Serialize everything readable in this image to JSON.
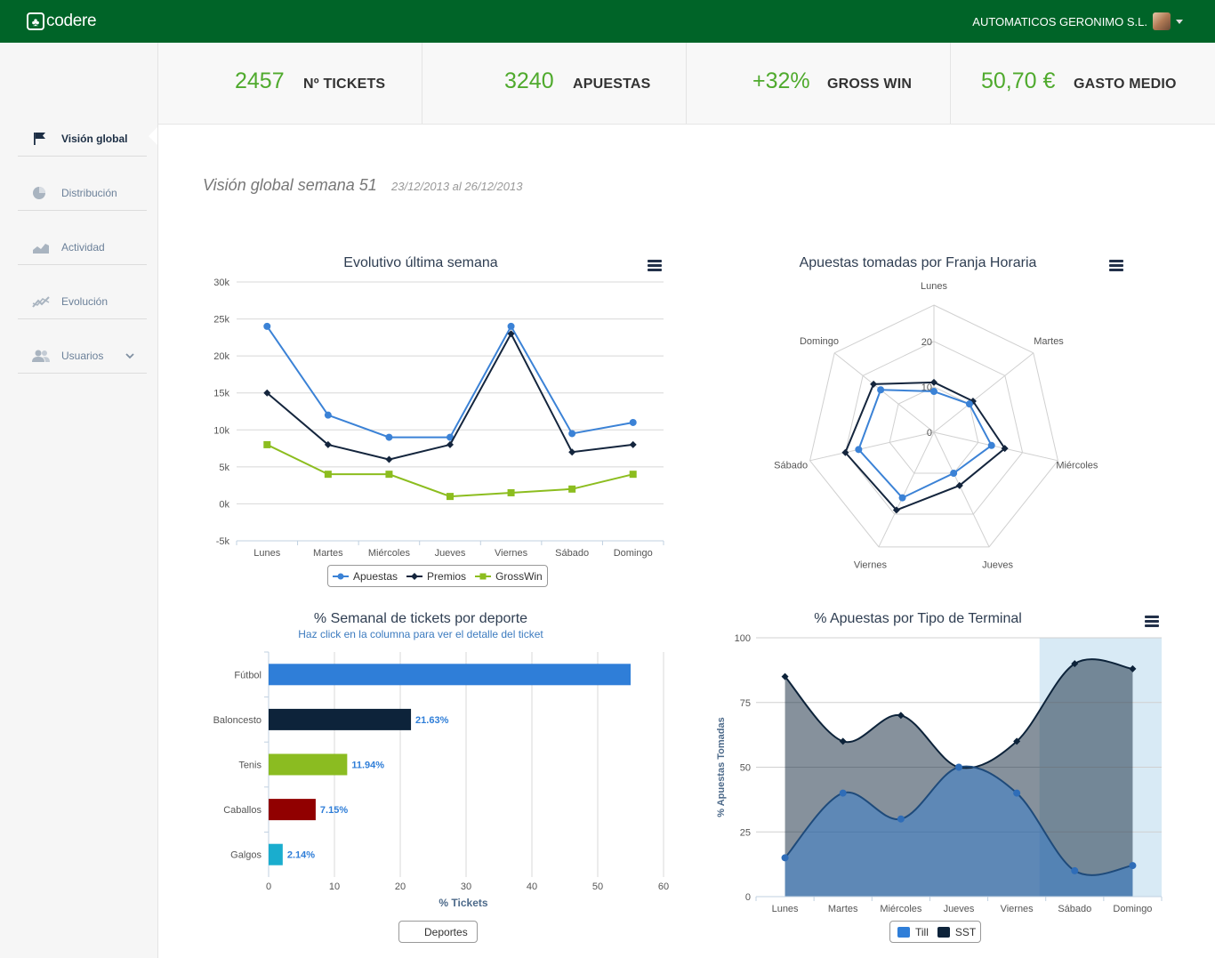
{
  "header": {
    "logo_text": "codere",
    "user_name": "AUTOMATICOS GERONIMO S.L."
  },
  "sidebar": {
    "items": [
      {
        "label": "Visión global",
        "icon": "flag-icon",
        "active": true
      },
      {
        "label": "Distribución",
        "icon": "pie-icon",
        "active": false
      },
      {
        "label": "Actividad",
        "icon": "area-chart-icon",
        "active": false
      },
      {
        "label": "Evolución",
        "icon": "line-chart-icon",
        "active": false
      },
      {
        "label": "Usuarios",
        "icon": "users-icon",
        "active": false
      }
    ]
  },
  "stats": [
    {
      "value": "2457",
      "label": "Nº TICKETS"
    },
    {
      "value": "3240",
      "label": "APUESTAS"
    },
    {
      "value": "+32%",
      "label": "GROSS WIN"
    },
    {
      "value": "50,70 €",
      "label": "GASTO MEDIO"
    }
  ],
  "page": {
    "title": "Visión global semana 51",
    "date_range": "23/12/2013 al 26/12/2013"
  },
  "colors": {
    "green": "#4faa2d",
    "blue": "#3b82d6",
    "navy": "#14253d",
    "lime": "#8cbd1f",
    "header": "#006428"
  },
  "chart_data": [
    {
      "type": "line",
      "title": "Evolutivo última semana",
      "categories": [
        "Lunes",
        "Martes",
        "Miércoles",
        "Jueves",
        "Viernes",
        "Sábado",
        "Domingo"
      ],
      "ylim": [
        -5000,
        30000
      ],
      "yticks": [
        "30k",
        "25k",
        "20k",
        "15k",
        "10k",
        "5k",
        "0k",
        "-5k"
      ],
      "series": [
        {
          "name": "Apuestas",
          "color": "#3b82d6",
          "values": [
            24000,
            12000,
            9000,
            9000,
            24000,
            9500,
            11000
          ]
        },
        {
          "name": "Premios",
          "color": "#14253d",
          "values": [
            15000,
            8000,
            6000,
            8000,
            23000,
            7000,
            8000
          ]
        },
        {
          "name": "GrossWin",
          "color": "#8cbd1f",
          "values": [
            8000,
            4000,
            4000,
            1000,
            1500,
            2000,
            4000
          ]
        }
      ]
    },
    {
      "type": "radar",
      "title": "Apuestas tomadas por Franja Horaria",
      "categories": [
        "Lunes",
        "Martes",
        "Miércoles",
        "Jueves",
        "Viernes",
        "Sábado",
        "Domingo"
      ],
      "rticks": [
        "0",
        "10",
        "20"
      ],
      "rmax": 28,
      "series": [
        {
          "name": "Apuestas",
          "color": "#3b82d6",
          "values": [
            9,
            10,
            13,
            10,
            16,
            17,
            15
          ]
        },
        {
          "name": "Premios",
          "color": "#14253d",
          "values": [
            11,
            11,
            16,
            13,
            19,
            20,
            17
          ]
        }
      ]
    },
    {
      "type": "bar",
      "title": "% Semanal de tickets por deporte",
      "subtitle": "Haz click en la columna para ver el detalle del ticket",
      "xlabel": "% Tickets",
      "xlim": [
        0,
        60
      ],
      "xticks": [
        "0",
        "10",
        "20",
        "30",
        "40",
        "50",
        "60"
      ],
      "categories": [
        "Fútbol",
        "Baloncesto",
        "Tenis",
        "Caballos",
        "Galgos"
      ],
      "values": [
        55,
        21.63,
        11.94,
        7.15,
        2.14
      ],
      "labels": [
        "",
        "21.63%",
        "11.94%",
        "7.15%",
        "2.14%"
      ],
      "colors": [
        "#2f7ed8",
        "#0d233a",
        "#8bbc21",
        "#910000",
        "#1aadce"
      ],
      "legend": "Deportes"
    },
    {
      "type": "area",
      "title": "% Apuestas por Tipo de Terminal",
      "ylabel": "% Apuestas Tomadas",
      "ylim": [
        0,
        100
      ],
      "yticks": [
        "100",
        "75",
        "50",
        "25",
        "0"
      ],
      "categories": [
        "Lunes",
        "Martes",
        "Miércoles",
        "Jueves",
        "Viernes",
        "Sábado",
        "Domingo"
      ],
      "series": [
        {
          "name": "Till",
          "color": "#2f7ed8",
          "values": [
            15,
            40,
            30,
            50,
            40,
            10,
            12
          ]
        },
        {
          "name": "SST",
          "color": "#0d233a",
          "values": [
            85,
            60,
            70,
            50,
            60,
            90,
            88
          ]
        }
      ]
    }
  ]
}
